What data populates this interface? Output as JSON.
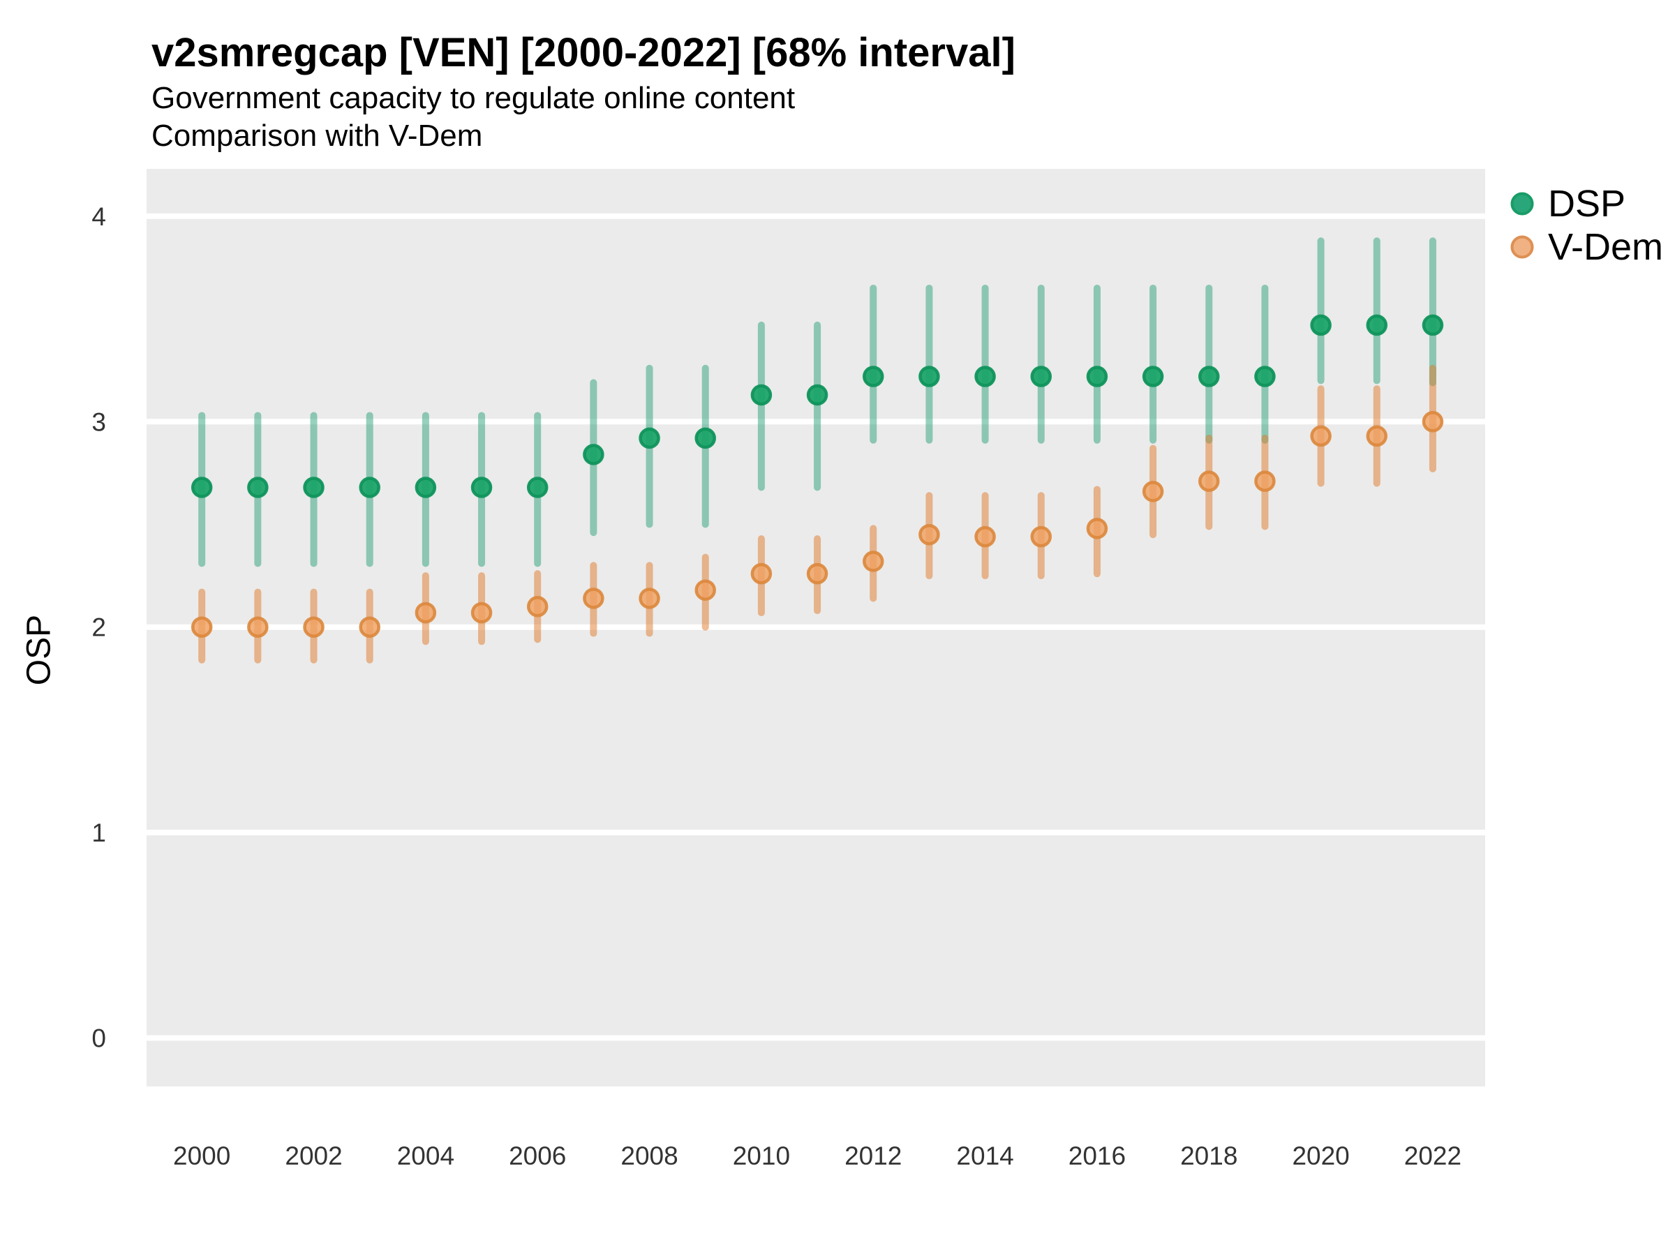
{
  "header": {
    "title": "v2smregcap [VEN] [2000-2022] [68% interval]",
    "subtitle_line1": "Government capacity to regulate online content",
    "subtitle_line2": "Comparison with V-Dem"
  },
  "y_axis": {
    "label": "OSP",
    "tick_labels": [
      "4",
      "3",
      "2",
      "1",
      "0"
    ],
    "tick_values": [
      4,
      3,
      2,
      1,
      0
    ]
  },
  "x_axis": {
    "tick_labels": [
      "2000",
      "2002",
      "2004",
      "2006",
      "2008",
      "2010",
      "2012",
      "2014",
      "2016",
      "2018",
      "2020",
      "2022"
    ],
    "tick_values": [
      2000,
      2002,
      2004,
      2006,
      2008,
      2010,
      2012,
      2014,
      2016,
      2018,
      2020,
      2022
    ]
  },
  "legend": {
    "items": [
      {
        "label": "DSP",
        "fill": "#29a77b",
        "stroke": "#1a9c67"
      },
      {
        "label": "V-Dem",
        "fill": "#f0b183",
        "stroke": "#de9053"
      }
    ]
  },
  "styles": {
    "panel_bg": "#ebebeb",
    "gridline_color": "#ffffff",
    "tick_text_color": "#333333",
    "dsp_point_fill": "rgba(24,163,103,0.92)",
    "dsp_point_stroke": "rgba(16,148,92,0.95)",
    "dsp_range_stroke": "rgba(23,154,108,0.45)",
    "vdem_point_fill": "rgba(240,160,95,0.8)",
    "vdem_point_stroke": "rgba(219,135,60,0.9)",
    "vdem_range_stroke": "rgba(224,122,41,0.5)"
  },
  "chart_data": {
    "type": "scatter",
    "title": "v2smregcap [VEN] [2000-2022] [68% interval]",
    "subtitle": "Government capacity to regulate online content",
    "note": "Comparison with V-Dem",
    "xlabel": "",
    "ylabel": "OSP",
    "interval": "68%",
    "ylim": [
      -0.24,
      4.23
    ],
    "y_gridlines": [
      0,
      1,
      2,
      3,
      4
    ],
    "grid": "horizontal-only",
    "legend_position": "right",
    "x": [
      2000,
      2001,
      2002,
      2003,
      2004,
      2005,
      2006,
      2007,
      2008,
      2009,
      2010,
      2011,
      2012,
      2013,
      2014,
      2015,
      2016,
      2017,
      2018,
      2019,
      2020,
      2021,
      2022
    ],
    "series": [
      {
        "name": "DSP",
        "points": [
          {
            "year": 2000,
            "value": 2.68,
            "lo": 2.31,
            "hi": 3.03
          },
          {
            "year": 2001,
            "value": 2.68,
            "lo": 2.31,
            "hi": 3.03
          },
          {
            "year": 2002,
            "value": 2.68,
            "lo": 2.31,
            "hi": 3.03
          },
          {
            "year": 2003,
            "value": 2.68,
            "lo": 2.31,
            "hi": 3.03
          },
          {
            "year": 2004,
            "value": 2.68,
            "lo": 2.31,
            "hi": 3.03
          },
          {
            "year": 2005,
            "value": 2.68,
            "lo": 2.31,
            "hi": 3.03
          },
          {
            "year": 2006,
            "value": 2.68,
            "lo": 2.31,
            "hi": 3.03
          },
          {
            "year": 2007,
            "value": 2.84,
            "lo": 2.46,
            "hi": 3.19
          },
          {
            "year": 2008,
            "value": 2.92,
            "lo": 2.5,
            "hi": 3.26
          },
          {
            "year": 2009,
            "value": 2.92,
            "lo": 2.5,
            "hi": 3.26
          },
          {
            "year": 2010,
            "value": 3.13,
            "lo": 2.68,
            "hi": 3.47
          },
          {
            "year": 2011,
            "value": 3.13,
            "lo": 2.68,
            "hi": 3.47
          },
          {
            "year": 2012,
            "value": 3.22,
            "lo": 2.91,
            "hi": 3.65
          },
          {
            "year": 2013,
            "value": 3.22,
            "lo": 2.91,
            "hi": 3.65
          },
          {
            "year": 2014,
            "value": 3.22,
            "lo": 2.91,
            "hi": 3.65
          },
          {
            "year": 2015,
            "value": 3.22,
            "lo": 2.91,
            "hi": 3.65
          },
          {
            "year": 2016,
            "value": 3.22,
            "lo": 2.91,
            "hi": 3.65
          },
          {
            "year": 2017,
            "value": 3.22,
            "lo": 2.91,
            "hi": 3.65
          },
          {
            "year": 2018,
            "value": 3.22,
            "lo": 2.91,
            "hi": 3.65
          },
          {
            "year": 2019,
            "value": 3.22,
            "lo": 2.91,
            "hi": 3.65
          },
          {
            "year": 2020,
            "value": 3.47,
            "lo": 3.2,
            "hi": 3.88
          },
          {
            "year": 2021,
            "value": 3.47,
            "lo": 3.2,
            "hi": 3.88
          },
          {
            "year": 2022,
            "value": 3.47,
            "lo": 3.19,
            "hi": 3.88
          }
        ]
      },
      {
        "name": "V-Dem",
        "points": [
          {
            "year": 2000,
            "value": 2.0,
            "lo": 1.84,
            "hi": 2.17
          },
          {
            "year": 2001,
            "value": 2.0,
            "lo": 1.84,
            "hi": 2.17
          },
          {
            "year": 2002,
            "value": 2.0,
            "lo": 1.84,
            "hi": 2.17
          },
          {
            "year": 2003,
            "value": 2.0,
            "lo": 1.84,
            "hi": 2.17
          },
          {
            "year": 2004,
            "value": 2.07,
            "lo": 1.93,
            "hi": 2.25
          },
          {
            "year": 2005,
            "value": 2.07,
            "lo": 1.93,
            "hi": 2.25
          },
          {
            "year": 2006,
            "value": 2.1,
            "lo": 1.94,
            "hi": 2.26
          },
          {
            "year": 2007,
            "value": 2.14,
            "lo": 1.97,
            "hi": 2.3
          },
          {
            "year": 2008,
            "value": 2.14,
            "lo": 1.97,
            "hi": 2.3
          },
          {
            "year": 2009,
            "value": 2.18,
            "lo": 2.0,
            "hi": 2.34
          },
          {
            "year": 2010,
            "value": 2.26,
            "lo": 2.07,
            "hi": 2.43
          },
          {
            "year": 2011,
            "value": 2.26,
            "lo": 2.08,
            "hi": 2.43
          },
          {
            "year": 2012,
            "value": 2.32,
            "lo": 2.14,
            "hi": 2.48
          },
          {
            "year": 2013,
            "value": 2.45,
            "lo": 2.25,
            "hi": 2.64
          },
          {
            "year": 2014,
            "value": 2.44,
            "lo": 2.25,
            "hi": 2.64
          },
          {
            "year": 2015,
            "value": 2.44,
            "lo": 2.25,
            "hi": 2.64
          },
          {
            "year": 2016,
            "value": 2.48,
            "lo": 2.26,
            "hi": 2.67
          },
          {
            "year": 2017,
            "value": 2.66,
            "lo": 2.45,
            "hi": 2.87
          },
          {
            "year": 2018,
            "value": 2.71,
            "lo": 2.49,
            "hi": 2.92
          },
          {
            "year": 2019,
            "value": 2.71,
            "lo": 2.49,
            "hi": 2.92
          },
          {
            "year": 2020,
            "value": 2.93,
            "lo": 2.7,
            "hi": 3.16
          },
          {
            "year": 2021,
            "value": 2.93,
            "lo": 2.7,
            "hi": 3.16
          },
          {
            "year": 2022,
            "value": 3.0,
            "lo": 2.77,
            "hi": 3.26
          }
        ]
      }
    ]
  }
}
